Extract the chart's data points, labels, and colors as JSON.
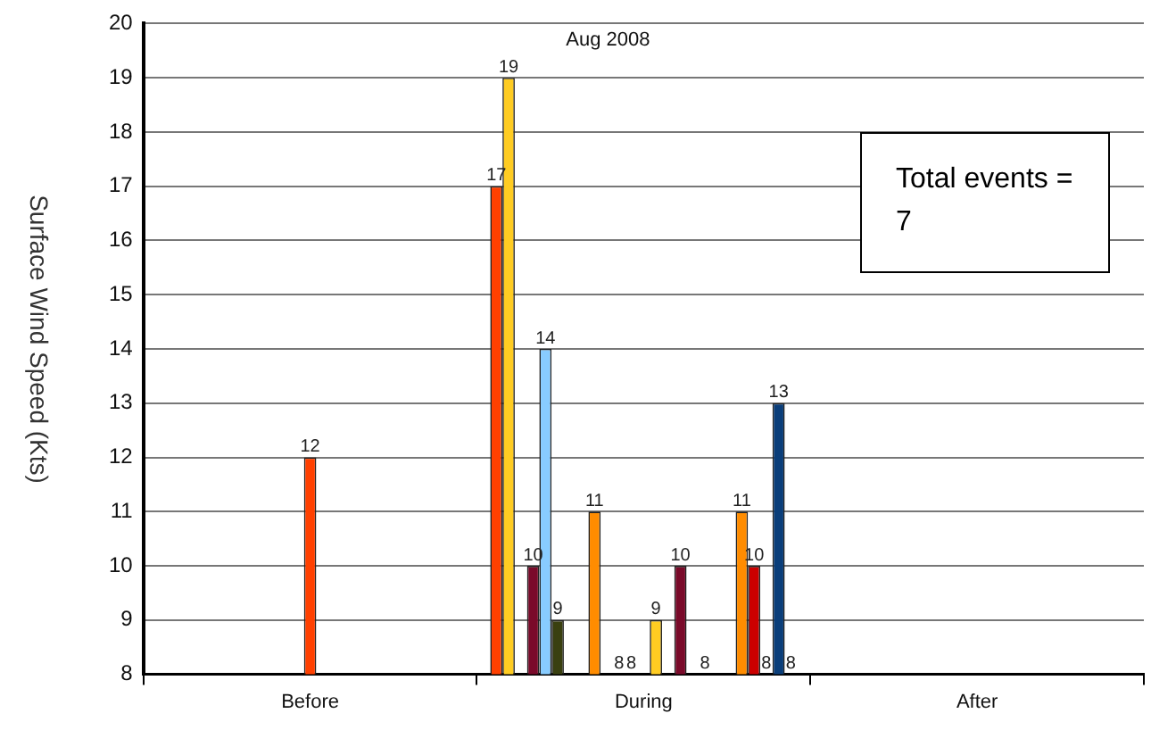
{
  "chart_data": {
    "type": "bar",
    "title": "Aug 2008",
    "ylabel": "Surface Wind Speed (Kts)",
    "categories": [
      "Before",
      "During",
      "After"
    ],
    "series": [
      {
        "color": "#ff4000",
        "values": [
          null,
          17,
          null
        ]
      },
      {
        "color": "#ffcc22",
        "values": [
          null,
          19,
          null
        ]
      },
      {
        "values": [
          null,
          null,
          null
        ]
      },
      {
        "color": "#7a0a2a",
        "values": [
          null,
          10,
          null
        ]
      },
      {
        "color": "#88ccff",
        "values": [
          null,
          14,
          null
        ]
      },
      {
        "color": "#3a4010",
        "values": [
          null,
          9,
          null
        ]
      },
      {
        "values": [
          null,
          null,
          null
        ]
      },
      {
        "values": [
          null,
          null,
          null
        ]
      },
      {
        "color": "#ff8c00",
        "values": [
          null,
          11,
          null
        ]
      },
      {
        "values": [
          null,
          null,
          null
        ]
      },
      {
        "color": "#333333",
        "values": [
          null,
          8,
          null
        ]
      },
      {
        "color": "#333333",
        "values": [
          null,
          8,
          null
        ]
      },
      {
        "color": "#ff4000",
        "values": [
          12,
          null,
          null
        ]
      },
      {
        "color": "#ffcc22",
        "values": [
          null,
          9,
          null
        ]
      },
      {
        "values": [
          null,
          null,
          null
        ]
      },
      {
        "color": "#7a0a2a",
        "values": [
          null,
          10,
          null
        ]
      },
      {
        "values": [
          null,
          null,
          null
        ]
      },
      {
        "color": "#333333",
        "values": [
          null,
          8,
          null
        ]
      },
      {
        "values": [
          null,
          null,
          null
        ]
      },
      {
        "values": [
          null,
          null,
          null
        ]
      },
      {
        "color": "#ff8c00",
        "values": [
          null,
          11,
          null
        ]
      },
      {
        "color": "#cc0000",
        "values": [
          null,
          10,
          null
        ]
      },
      {
        "color": "#333333",
        "values": [
          null,
          8,
          null
        ]
      },
      {
        "color": "#0a3e7a",
        "values": [
          null,
          13,
          null
        ]
      },
      {
        "color": "#333333",
        "values": [
          null,
          8,
          null
        ]
      }
    ],
    "ylim": [
      8,
      20
    ],
    "yticks": [
      8,
      9,
      10,
      11,
      12,
      13,
      14,
      15,
      16,
      17,
      18,
      19,
      20
    ],
    "grid": "y",
    "data_labels": true,
    "legend": false,
    "annotations": [
      "Total events = 7"
    ]
  }
}
